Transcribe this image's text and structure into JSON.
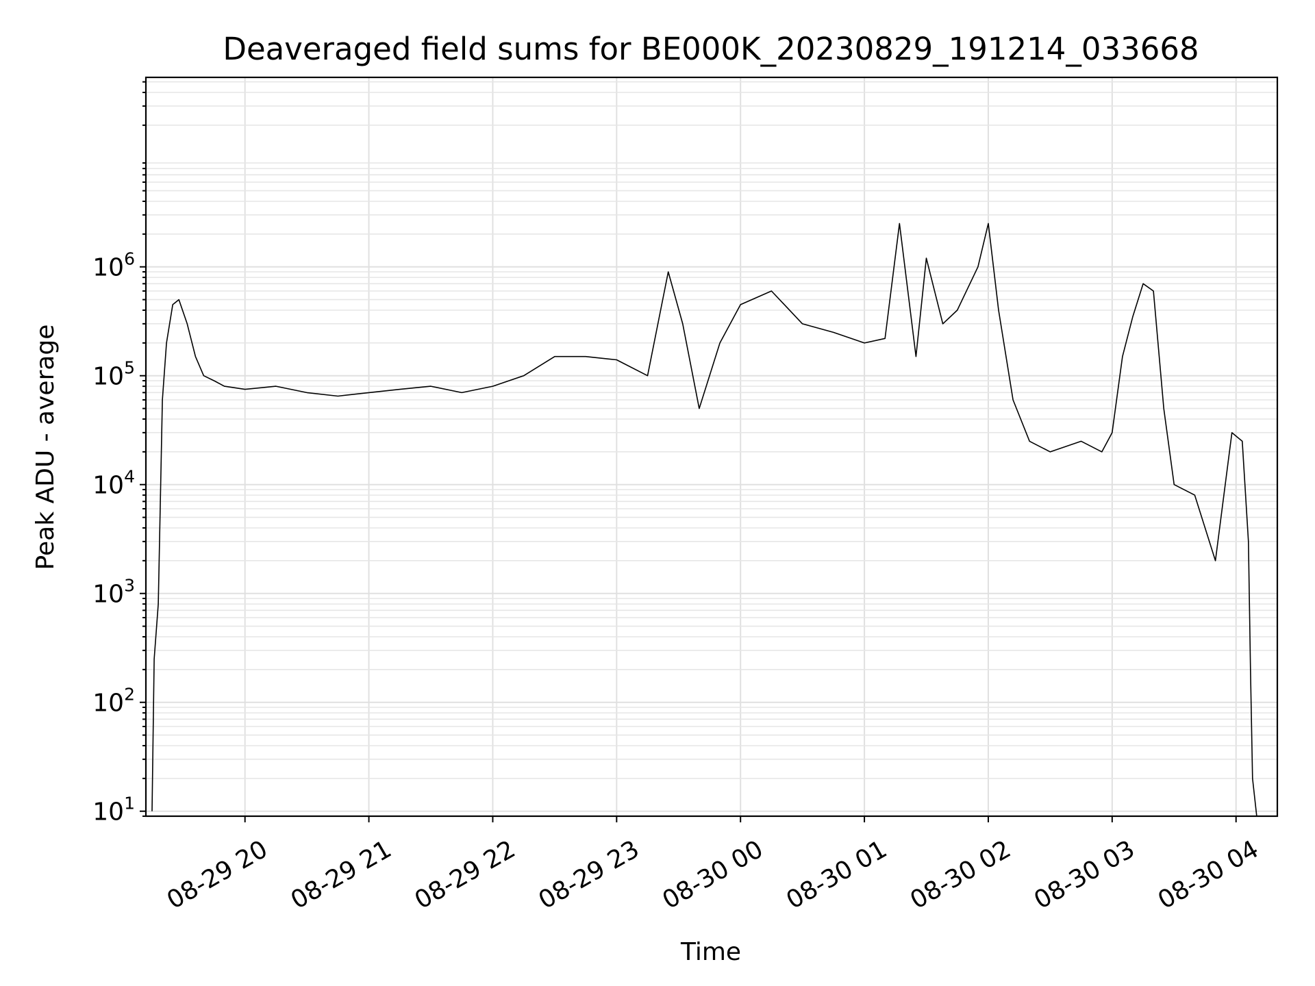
{
  "chart_data": {
    "type": "line",
    "title": "Deaveraged field sums for BE000K_20230829_191214_033668",
    "xlabel": "Time",
    "ylabel": "Peak ADU - average",
    "yscale": "log",
    "ylim": [
      9,
      55000000
    ],
    "xlim": [
      "2023-08-29 19:12",
      "2023-08-30 04:20"
    ],
    "grid": true,
    "line_color": "#000000",
    "x_ticks": [
      {
        "t": "2023-08-29 20:00",
        "label": "08-29 20"
      },
      {
        "t": "2023-08-29 21:00",
        "label": "08-29 21"
      },
      {
        "t": "2023-08-29 22:00",
        "label": "08-29 22"
      },
      {
        "t": "2023-08-29 23:00",
        "label": "08-29 23"
      },
      {
        "t": "2023-08-30 00:00",
        "label": "08-30 00"
      },
      {
        "t": "2023-08-30 01:00",
        "label": "08-30 01"
      },
      {
        "t": "2023-08-30 02:00",
        "label": "08-30 02"
      },
      {
        "t": "2023-08-30 03:00",
        "label": "08-30 03"
      },
      {
        "t": "2023-08-30 04:00",
        "label": "08-30 04"
      }
    ],
    "y_ticks": [
      {
        "value": 10,
        "base": "10",
        "exp": "1"
      },
      {
        "value": 100,
        "base": "10",
        "exp": "2"
      },
      {
        "value": 1000,
        "base": "10",
        "exp": "3"
      },
      {
        "value": 10000,
        "base": "10",
        "exp": "4"
      },
      {
        "value": 100000,
        "base": "10",
        "exp": "5"
      },
      {
        "value": 1000000,
        "base": "10",
        "exp": "6"
      }
    ],
    "series": [
      {
        "x": [
          "2023-08-29 19:15",
          "2023-08-29 19:16",
          "2023-08-29 19:18",
          "2023-08-29 19:20",
          "2023-08-29 19:22",
          "2023-08-29 19:25",
          "2023-08-29 19:28",
          "2023-08-29 19:32",
          "2023-08-29 19:36",
          "2023-08-29 19:40",
          "2023-08-29 19:45",
          "2023-08-29 19:50",
          "2023-08-29 20:00",
          "2023-08-29 20:15",
          "2023-08-29 20:30",
          "2023-08-29 20:45",
          "2023-08-29 21:00",
          "2023-08-29 21:15",
          "2023-08-29 21:30",
          "2023-08-29 21:45",
          "2023-08-29 22:00",
          "2023-08-29 22:15",
          "2023-08-29 22:30",
          "2023-08-29 22:45",
          "2023-08-29 23:00",
          "2023-08-29 23:15",
          "2023-08-29 23:25",
          "2023-08-29 23:32",
          "2023-08-29 23:40",
          "2023-08-29 23:50",
          "2023-08-30 00:00",
          "2023-08-30 00:15",
          "2023-08-30 00:30",
          "2023-08-30 00:45",
          "2023-08-30 01:00",
          "2023-08-30 01:10",
          "2023-08-30 01:17",
          "2023-08-30 01:25",
          "2023-08-30 01:30",
          "2023-08-30 01:38",
          "2023-08-30 01:45",
          "2023-08-30 01:55",
          "2023-08-30 02:00",
          "2023-08-30 02:05",
          "2023-08-30 02:12",
          "2023-08-30 02:20",
          "2023-08-30 02:30",
          "2023-08-30 02:45",
          "2023-08-30 02:55",
          "2023-08-30 03:00",
          "2023-08-30 03:05",
          "2023-08-30 03:10",
          "2023-08-30 03:15",
          "2023-08-30 03:20",
          "2023-08-30 03:25",
          "2023-08-30 03:30",
          "2023-08-30 03:40",
          "2023-08-30 03:50",
          "2023-08-30 03:58",
          "2023-08-30 04:03",
          "2023-08-30 04:06",
          "2023-08-30 04:07",
          "2023-08-30 04:08",
          "2023-08-30 04:10"
        ],
        "y": [
          10,
          250,
          800,
          60000,
          200000,
          450000,
          500000,
          300000,
          150000,
          100000,
          90000,
          80000,
          75000,
          80000,
          70000,
          65000,
          70000,
          75000,
          80000,
          70000,
          80000,
          100000,
          150000,
          150000,
          140000,
          100000,
          900000,
          300000,
          50000,
          200000,
          450000,
          600000,
          300000,
          250000,
          200000,
          220000,
          2500000,
          150000,
          1200000,
          300000,
          400000,
          1000000,
          2500000,
          400000,
          60000,
          25000,
          20000,
          25000,
          20000,
          30000,
          150000,
          350000,
          700000,
          600000,
          50000,
          10000,
          8000,
          2000,
          30000,
          25000,
          3000,
          200,
          20,
          9
        ]
      }
    ]
  }
}
